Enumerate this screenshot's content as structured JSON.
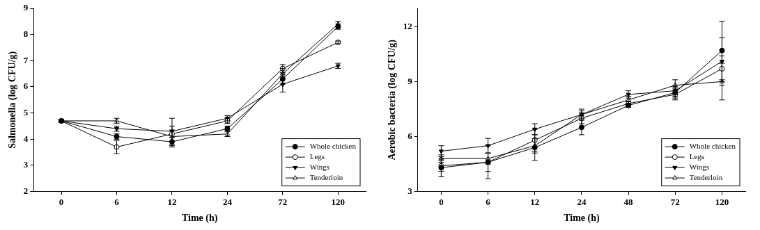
{
  "chart_data": [
    {
      "type": "line",
      "x_label": "Time (h)",
      "y_label": "Salmonella (log CFU/g)",
      "categories": [
        0,
        6,
        12,
        24,
        72,
        120
      ],
      "series": [
        {
          "name": "Whole chicken",
          "color": "#000000",
          "marker": "circle",
          "values": [
            4.7,
            4.1,
            3.9,
            4.4,
            6.3,
            8.3
          ],
          "errors": [
            0.05,
            0.1,
            0.15,
            0.1,
            0.2,
            0.1
          ]
        },
        {
          "name": "Legs",
          "color": "#000000",
          "marker": "circle_open",
          "values": [
            4.7,
            3.7,
            4.2,
            4.7,
            6.7,
            7.7
          ],
          "errors": [
            0.05,
            0.25,
            0.15,
            0.1,
            0.15,
            0.05
          ]
        },
        {
          "name": "Wings",
          "color": "#000000",
          "marker": "triangle_down",
          "values": [
            4.7,
            4.4,
            4.3,
            4.8,
            6.1,
            6.8
          ],
          "errors": [
            0.05,
            0.1,
            0.5,
            0.1,
            0.3,
            0.1
          ]
        },
        {
          "name": "Tenderloin",
          "color": "#000000",
          "marker": "triangle_up",
          "values": [
            4.7,
            4.7,
            4.1,
            4.2,
            6.5,
            8.4
          ],
          "errors": [
            0.05,
            0.1,
            0.4,
            0.1,
            0.2,
            0.1
          ]
        }
      ],
      "ylim": [
        2,
        9
      ],
      "yticks": [
        2,
        3,
        4,
        5,
        6,
        7,
        8,
        9
      ],
      "grid": false,
      "legend": "lower right"
    },
    {
      "type": "line",
      "x_label": "Time (h)",
      "y_label": "Aerobic bacteria (log CFU/g)",
      "categories": [
        0,
        6,
        12,
        24,
        48,
        72,
        120
      ],
      "series": [
        {
          "name": "Whole chicken",
          "color": "#000000",
          "marker": "circle",
          "values": [
            4.3,
            4.6,
            5.4,
            6.5,
            7.7,
            8.4,
            10.7
          ],
          "errors": [
            0.5,
            0.9,
            0.7,
            0.4,
            0.1,
            0.3,
            1.6
          ]
        },
        {
          "name": "Legs",
          "color": "#000000",
          "marker": "circle_open",
          "values": [
            4.4,
            4.6,
            5.8,
            7.0,
            7.8,
            8.3,
            9.7
          ],
          "errors": [
            0.3,
            0.5,
            0.6,
            0.3,
            0.1,
            0.3,
            0.7
          ]
        },
        {
          "name": "Wings",
          "color": "#000000",
          "marker": "triangle_down",
          "values": [
            5.2,
            5.5,
            6.4,
            7.2,
            8.3,
            8.5,
            10.1
          ],
          "errors": [
            0.3,
            0.4,
            0.3,
            0.2,
            0.2,
            0.3,
            1.3
          ]
        },
        {
          "name": "Tenderloin",
          "color": "#000000",
          "marker": "triangle_up",
          "values": [
            4.8,
            4.8,
            5.5,
            7.2,
            8.0,
            8.8,
            9.0
          ],
          "errors": [
            0.2,
            0.3,
            0.4,
            0.3,
            0.2,
            0.3,
            1.0
          ]
        }
      ],
      "ylim": [
        3,
        13
      ],
      "yticks": [
        3,
        6,
        9,
        12
      ],
      "grid": false,
      "legend": "lower right"
    }
  ]
}
